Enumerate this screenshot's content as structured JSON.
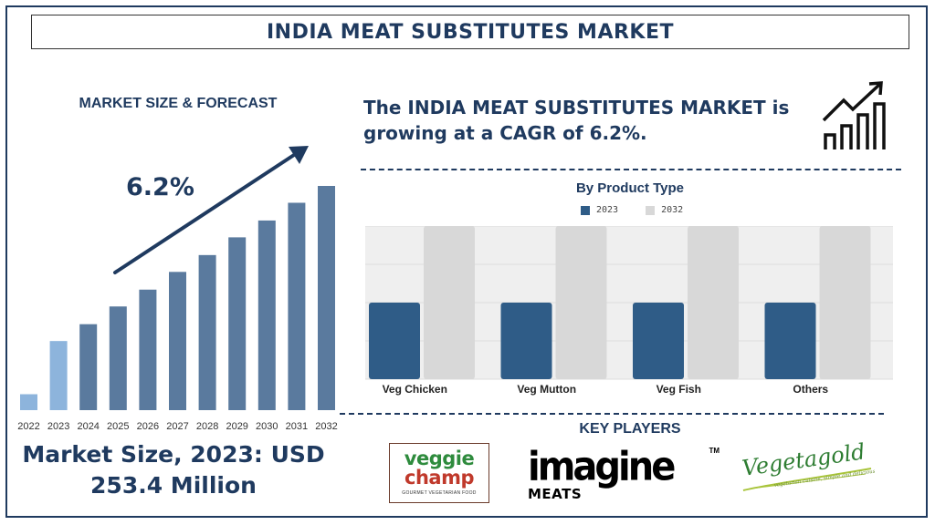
{
  "header": {
    "title": "INDIA MEAT SUBSTITUTES MARKET"
  },
  "left_panel": {
    "title": "MARKET SIZE & FORECAST",
    "cagr_label": "6.2%",
    "footer_line1": "Market Size, 2023: USD",
    "footer_line2": "253.4 Million"
  },
  "right_panel": {
    "headline_line1": "The INDIA MEAT SUBSTITUTES MARKET is",
    "headline_line2": "growing at a CAGR of 6.2%.",
    "icon": "growth-chart-icon"
  },
  "colors": {
    "navy": "#1f3a5f",
    "bar_main": "#5a7a9e",
    "bar_light": "#8db4dc",
    "series_2023": "#2f5c87",
    "series_2032": "#d8d8d8"
  },
  "key_players": {
    "title": "KEY PLAYERS",
    "logos": [
      {
        "name": "veggie champ",
        "line1": "veggie",
        "line2": "champ",
        "tagline": "GOURMET VEGETARIAN FOOD"
      },
      {
        "name": "Imagine Meats",
        "line1": "imagine",
        "line2": "MEATS",
        "mark": "TM"
      },
      {
        "name": "Vegetagold",
        "script": "Vegetagold",
        "tagline": "vegetarian cuisine, simple and delicious"
      }
    ]
  },
  "chart_data": [
    {
      "type": "bar",
      "title": "",
      "categories": [
        "2022",
        "2023",
        "2024",
        "2025",
        "2026",
        "2027",
        "2028",
        "2029",
        "2030",
        "2031",
        "2032"
      ],
      "values": [
        18,
        78,
        97,
        117,
        136,
        156,
        175,
        195,
        214,
        234,
        253
      ],
      "highlight": {
        "2022": "light",
        "2023": "light"
      },
      "annotation": "6.2%",
      "xlabel": "",
      "ylabel": ""
    },
    {
      "type": "bar",
      "title": "By Product Type",
      "categories": [
        "Veg Chicken",
        "Veg Mutton",
        "Veg Fish",
        "Others"
      ],
      "series": [
        {
          "name": "2023",
          "values": [
            2,
            2,
            2,
            2
          ]
        },
        {
          "name": "2032",
          "values": [
            4,
            4,
            4,
            4
          ]
        }
      ],
      "ylim": [
        0,
        4
      ],
      "grid": true,
      "legend": "top-center",
      "xlabel": "",
      "ylabel": ""
    }
  ]
}
